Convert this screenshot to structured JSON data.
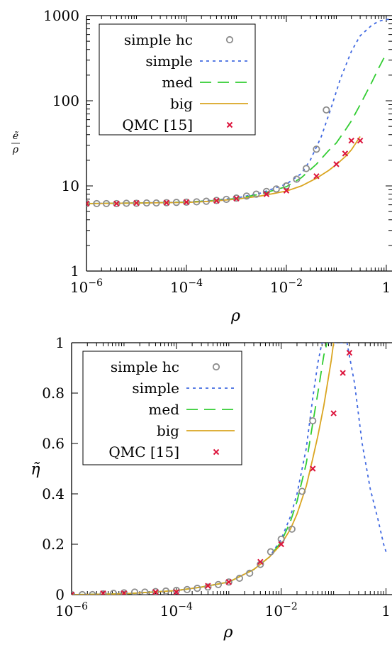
{
  "colors": {
    "simple_hc": "#8c8c8c",
    "simple": "#4169e1",
    "med": "#32cd32",
    "big": "#daa520",
    "qmc": "#dc143c"
  },
  "chart_data": [
    {
      "type": "line",
      "log_x": true,
      "log_y": true,
      "xlim": [
        1e-06,
        1.3
      ],
      "ylim": [
        1,
        1000
      ],
      "x_ticks": [
        {
          "value": 1e-06,
          "base": "10",
          "exp": "−6"
        },
        {
          "value": 0.0001,
          "base": "10",
          "exp": "−4"
        },
        {
          "value": 0.01,
          "base": "10",
          "exp": "−2"
        },
        {
          "value": 1,
          "base": "1",
          "exp": ""
        }
      ],
      "y_ticks": [
        {
          "value": 1,
          "label": "1"
        },
        {
          "value": 10,
          "label": "10"
        },
        {
          "value": 100,
          "label": "100"
        },
        {
          "value": 1000,
          "label": "1000"
        }
      ],
      "xlabel": "ρ",
      "ylabel": {
        "num": "ẽ",
        "den": "ρ"
      },
      "legend_position": "top-left",
      "grid": false,
      "series": [
        {
          "name": "simple hc",
          "style": "circle",
          "x": [
            1e-06,
            1.6e-06,
            2.5e-06,
            4e-06,
            6.3e-06,
            1e-05,
            1.6e-05,
            2.5e-05,
            4e-05,
            6.3e-05,
            0.0001,
            0.00016,
            0.00025,
            0.0004,
            0.00063,
            0.001,
            0.0016,
            0.0025,
            0.004,
            0.0063,
            0.01,
            0.016,
            0.025,
            0.04,
            0.063
          ],
          "y": [
            6.2,
            6.2,
            6.2,
            6.2,
            6.25,
            6.25,
            6.3,
            6.3,
            6.35,
            6.4,
            6.45,
            6.5,
            6.6,
            6.75,
            6.95,
            7.2,
            7.6,
            8.0,
            8.6,
            9.2,
            10.0,
            12.0,
            16.0,
            27.0,
            78.0
          ]
        },
        {
          "name": "simple",
          "style": "dotted",
          "x": [
            1e-06,
            1e-05,
            0.0001,
            0.0003,
            0.001,
            0.003,
            0.01,
            0.02,
            0.03,
            0.05,
            0.08,
            0.12,
            0.2,
            0.3,
            0.5,
            0.7,
            1.0,
            1.3
          ],
          "y": [
            6.2,
            6.3,
            6.45,
            6.75,
            7.2,
            8.2,
            10.5,
            14.0,
            20.0,
            38.0,
            85.0,
            180.0,
            380.0,
            580.0,
            760.0,
            860.0,
            900.0,
            910.0
          ]
        },
        {
          "name": "med",
          "style": "dashed",
          "x": [
            1e-06,
            1e-05,
            0.0001,
            0.0003,
            0.001,
            0.003,
            0.01,
            0.02,
            0.04,
            0.07,
            0.1,
            0.15,
            0.2,
            0.3,
            0.5,
            0.7,
            1.0
          ],
          "y": [
            6.2,
            6.3,
            6.45,
            6.7,
            7.1,
            8.0,
            9.8,
            12.5,
            18.0,
            26.0,
            32.0,
            45.0,
            58.0,
            90.0,
            160.0,
            240.0,
            360.0
          ]
        },
        {
          "name": "big",
          "style": "solid",
          "x": [
            1e-06,
            1e-05,
            0.0001,
            0.0003,
            0.001,
            0.003,
            0.01,
            0.02,
            0.04,
            0.07,
            0.1,
            0.15,
            0.2,
            0.3
          ],
          "y": [
            6.2,
            6.3,
            6.4,
            6.6,
            7.0,
            7.6,
            8.7,
            10.0,
            12.3,
            15.2,
            17.8,
            22.0,
            26.5,
            38.0
          ]
        },
        {
          "name": "QMC [15]",
          "style": "cross",
          "x": [
            1e-06,
            4e-06,
            1e-05,
            4e-05,
            0.0001,
            0.0004,
            0.001,
            0.004,
            0.01,
            0.04,
            0.1,
            0.15,
            0.2,
            0.3
          ],
          "y": [
            6.2,
            6.2,
            6.3,
            6.35,
            6.45,
            6.7,
            7.1,
            8.0,
            8.8,
            13.0,
            18.0,
            24.0,
            34.0,
            34.0
          ]
        }
      ]
    },
    {
      "type": "line",
      "log_x": true,
      "log_y": false,
      "xlim": [
        1e-06,
        1.3
      ],
      "ylim": [
        0,
        1
      ],
      "x_ticks": [
        {
          "value": 1e-06,
          "base": "10",
          "exp": "−6"
        },
        {
          "value": 0.0001,
          "base": "10",
          "exp": "−4"
        },
        {
          "value": 0.01,
          "base": "10",
          "exp": "−2"
        },
        {
          "value": 1,
          "base": "1",
          "exp": ""
        }
      ],
      "y_ticks": [
        {
          "value": 0,
          "label": "0"
        },
        {
          "value": 0.2,
          "label": "0.2"
        },
        {
          "value": 0.4,
          "label": "0.4"
        },
        {
          "value": 0.6,
          "label": "0.6"
        },
        {
          "value": 0.8,
          "label": "0.8"
        },
        {
          "value": 1,
          "label": "1"
        }
      ],
      "xlabel": "ρ",
      "ylabel": {
        "num": "η̃",
        "den": ""
      },
      "legend_position": "top-left",
      "grid": false,
      "series": [
        {
          "name": "simple hc",
          "style": "circle",
          "x": [
            1e-06,
            1.6e-06,
            2.5e-06,
            4e-06,
            6.3e-06,
            1e-05,
            1.6e-05,
            2.5e-05,
            4e-05,
            6.3e-05,
            0.0001,
            0.00016,
            0.00025,
            0.0004,
            0.00063,
            0.001,
            0.0016,
            0.0025,
            0.004,
            0.0063,
            0.01,
            0.016,
            0.025,
            0.04
          ],
          "y": [
            0.0,
            0.0,
            0.0,
            0.003,
            0.005,
            0.007,
            0.01,
            0.01,
            0.012,
            0.014,
            0.017,
            0.02,
            0.025,
            0.03,
            0.04,
            0.05,
            0.065,
            0.085,
            0.12,
            0.17,
            0.22,
            0.26,
            0.41,
            0.69
          ]
        },
        {
          "name": "simple",
          "style": "dotted",
          "x": [
            1e-06,
            1e-05,
            0.0001,
            0.0003,
            0.001,
            0.003,
            0.006,
            0.01,
            0.015,
            0.02,
            0.03,
            0.04,
            0.05,
            0.06,
            0.18,
            0.25,
            0.35,
            0.5,
            0.7,
            0.9,
            1.0
          ],
          "y": [
            0.0,
            0.003,
            0.016,
            0.03,
            0.05,
            0.1,
            0.15,
            0.22,
            0.31,
            0.4,
            0.58,
            0.78,
            0.92,
            1.0,
            1.0,
            0.84,
            0.6,
            0.42,
            0.3,
            0.2,
            0.17
          ]
        },
        {
          "name": "med",
          "style": "dashed",
          "x": [
            1e-06,
            1e-05,
            0.0001,
            0.0003,
            0.001,
            0.003,
            0.006,
            0.01,
            0.015,
            0.02,
            0.03,
            0.04,
            0.05,
            0.065,
            0.075
          ],
          "y": [
            0.0,
            0.003,
            0.016,
            0.03,
            0.05,
            0.1,
            0.15,
            0.21,
            0.29,
            0.37,
            0.52,
            0.68,
            0.8,
            0.95,
            1.0
          ]
        },
        {
          "name": "big",
          "style": "solid",
          "x": [
            1e-06,
            1e-05,
            0.0001,
            0.0003,
            0.001,
            0.003,
            0.006,
            0.01,
            0.015,
            0.02,
            0.03,
            0.04,
            0.05,
            0.065,
            0.09,
            0.1
          ],
          "y": [
            0.0,
            0.003,
            0.016,
            0.03,
            0.05,
            0.1,
            0.15,
            0.2,
            0.26,
            0.32,
            0.43,
            0.54,
            0.63,
            0.75,
            0.93,
            1.0
          ]
        },
        {
          "name": "QMC [15]",
          "style": "cross",
          "x": [
            1e-06,
            4e-06,
            1e-05,
            4e-05,
            0.0001,
            0.0004,
            0.001,
            0.004,
            0.01,
            0.04,
            0.1,
            0.15,
            0.2
          ],
          "y": [
            0.0,
            0.005,
            0.005,
            0.01,
            0.01,
            0.035,
            0.05,
            0.13,
            0.2,
            0.5,
            0.72,
            0.88,
            0.96
          ]
        }
      ]
    }
  ]
}
